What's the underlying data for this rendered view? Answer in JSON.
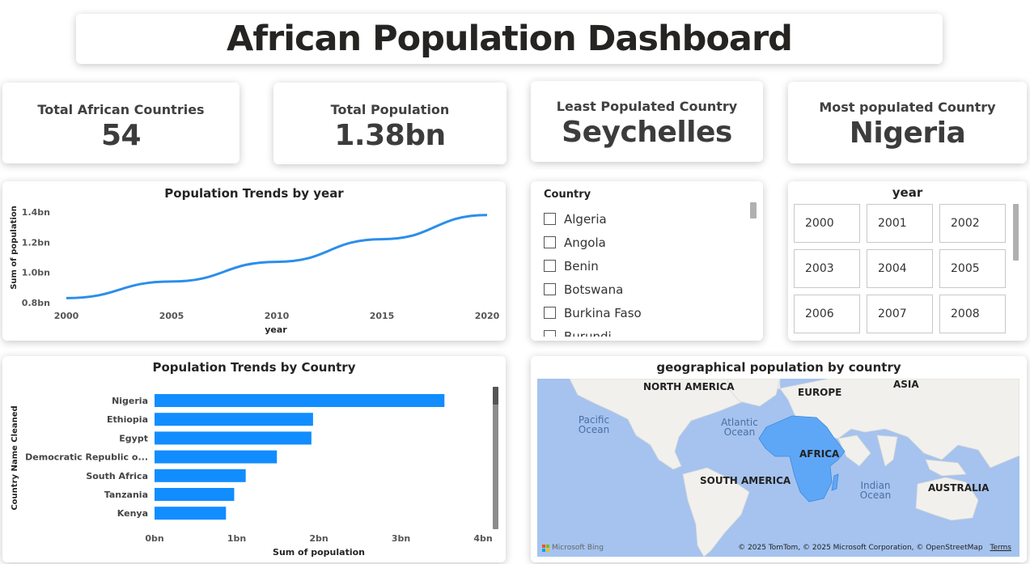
{
  "header": {
    "title": "African Population Dashboard"
  },
  "kpis": [
    {
      "label": "Total African Countries",
      "value": "54"
    },
    {
      "label": "Total Population",
      "value": "1.38bn"
    },
    {
      "label": "Least Populated Country",
      "value": "Seychelles"
    },
    {
      "label": "Most populated Country",
      "value": "Nigeria"
    }
  ],
  "line_chart": {
    "title": "Population Trends by year",
    "ylabel": "Sum of population",
    "xlabel": "year",
    "y_ticks": [
      "1.4bn",
      "1.2bn",
      "1.0bn",
      "0.8bn"
    ],
    "x_ticks": [
      "2000",
      "2005",
      "2010",
      "2015",
      "2020"
    ]
  },
  "bar_chart": {
    "title": "Population Trends by Country",
    "ylabel": "Country Name Cleaned",
    "xlabel": "Sum of population",
    "x_ticks": [
      "0bn",
      "1bn",
      "2bn",
      "3bn",
      "4bn"
    ],
    "categories": [
      "Nigeria",
      "Ethiopia",
      "Egypt",
      "Democratic Republic o...",
      "South Africa",
      "Tanzania",
      "Kenya"
    ]
  },
  "country_slicer": {
    "title": "Country",
    "items": [
      "Algeria",
      "Angola",
      "Benin",
      "Botswana",
      "Burkina Faso",
      "Burundi"
    ]
  },
  "year_slicer": {
    "title": "year",
    "years": [
      "2000",
      "2001",
      "2002",
      "2003",
      "2004",
      "2005",
      "2006",
      "2007",
      "2008"
    ]
  },
  "map": {
    "title": "geographical population by country",
    "continents": [
      "NORTH AMERICA",
      "EUROPE",
      "ASIA",
      "AFRICA",
      "SOUTH AMERICA",
      "AUSTRALIA"
    ],
    "oceans": [
      "Pacific Ocean",
      "Atlantic Ocean",
      "Indian Ocean"
    ],
    "attribution": "© 2025 TomTom, © 2025 Microsoft Corporation, © OpenStreetMap",
    "terms": "Terms",
    "provider": "Microsoft Bing"
  },
  "colors": {
    "accent": "#118DFF",
    "line": "#2B8EEB",
    "map_water": "#A5C3EE",
    "map_land": "#F1F0EC",
    "map_africa": "#5EA7F7"
  },
  "chart_data": [
    {
      "type": "line",
      "title": "Population Trends by year",
      "xlabel": "year",
      "ylabel": "Sum of population",
      "x": [
        2000,
        2005,
        2010,
        2015,
        2020
      ],
      "y": [
        0.83,
        0.94,
        1.07,
        1.22,
        1.38
      ],
      "ylim": [
        0.8,
        1.4
      ],
      "y_unit": "bn",
      "legend": "none"
    },
    {
      "type": "bar",
      "orientation": "horizontal",
      "title": "Population Trends by Country",
      "xlabel": "Sum of population",
      "ylabel": "Country Name Cleaned",
      "categories": [
        "Nigeria",
        "Ethiopia",
        "Egypt",
        "Democratic Republic o...",
        "South Africa",
        "Tanzania",
        "Kenya"
      ],
      "values": [
        3.53,
        1.93,
        1.91,
        1.49,
        1.11,
        0.97,
        0.87
      ],
      "xlim": [
        0,
        4
      ],
      "x_unit": "bn",
      "legend": "none"
    }
  ]
}
